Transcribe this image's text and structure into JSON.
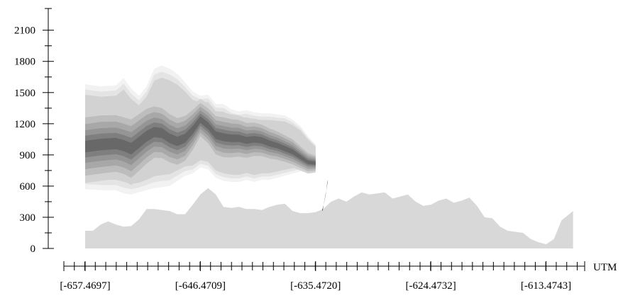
{
  "chart_data": {
    "type": "area",
    "xlabel": "UTM",
    "ylabel": "",
    "title": "",
    "ylim": [
      0,
      2200
    ],
    "xlim": [
      -659.5,
      -610.6
    ],
    "yticks": [
      0,
      300,
      600,
      900,
      1200,
      1500,
      1800,
      2100
    ],
    "xtick_labels": [
      "[-657.4697]",
      "[-646.4709]",
      "[-635.4720]",
      "[-624.4732]",
      "[-613.4743]"
    ],
    "xticks": [
      -657.4697,
      -646.4709,
      -635.472,
      -624.4732,
      -613.4743
    ],
    "x_minor_step": 1.0,
    "colors": {
      "terrain": "#d8d8d8",
      "dark_mark": "#454545",
      "bands": [
        "#f2f2f2",
        "#e4e4e4",
        "#d2d2d2",
        "#bcbcbc",
        "#a7a7a7",
        "#939393",
        "#7d7d7d",
        "#676767"
      ]
    },
    "series": [
      {
        "type": "area-baseline",
        "role": "terrain",
        "x": [
          -657.47,
          -656.73,
          -656.0,
          -655.27,
          -654.53,
          -653.8,
          -653.07,
          -652.33,
          -651.6,
          -650.87,
          -650.13,
          -649.4,
          -648.67,
          -647.93,
          -647.2,
          -646.47,
          -645.73,
          -645.0,
          -644.27,
          -643.53,
          -642.8,
          -642.07,
          -641.33,
          -640.6,
          -639.87,
          -639.13,
          -638.4,
          -637.67,
          -636.93,
          -636.2,
          -635.47,
          -634.73,
          -634.0,
          -633.27,
          -632.53,
          -631.8,
          -631.07,
          -630.33,
          -629.6,
          -628.87,
          -628.13,
          -627.4,
          -626.67,
          -625.93,
          -625.2,
          -624.47,
          -623.73,
          -623.0,
          -622.27,
          -621.53,
          -620.8,
          -620.07,
          -619.33,
          -618.6,
          -617.87,
          -617.13,
          -616.4,
          -615.67,
          -614.93,
          -614.2,
          -613.47,
          -612.73,
          -612.0,
          -611.27,
          -610.9
        ],
        "y": [
          170,
          170,
          230,
          260,
          230,
          210,
          215,
          280,
          380,
          380,
          370,
          360,
          330,
          330,
          420,
          520,
          580,
          520,
          400,
          390,
          400,
          380,
          380,
          370,
          400,
          420,
          430,
          360,
          340,
          340,
          350,
          380,
          450,
          480,
          450,
          500,
          540,
          520,
          530,
          540,
          480,
          500,
          520,
          450,
          410,
          420,
          460,
          480,
          440,
          460,
          490,
          410,
          300,
          290,
          210,
          170,
          160,
          150,
          90,
          60,
          40,
          90,
          270,
          330,
          360
        ]
      },
      {
        "type": "band",
        "role": "light halo",
        "x": [
          -657.47,
          -656.0,
          -654.53,
          -653.8,
          -653.07,
          -652.33,
          -651.6,
          -650.87,
          -650.13,
          -649.4,
          -648.67,
          -647.93,
          -647.2,
          -646.47,
          -645.73,
          -645.0,
          -644.27,
          -643.53,
          -642.8,
          -642.07,
          -641.33,
          -640.6,
          -639.87,
          -639.13,
          -638.4,
          -637.67,
          -636.93,
          -636.2,
          -635.47
        ],
        "low": [
          570,
          560,
          560,
          530,
          520,
          540,
          560,
          580,
          590,
          600,
          650,
          700,
          720,
          780,
          760,
          680,
          650,
          640,
          640,
          660,
          640,
          660,
          660,
          680,
          700,
          720,
          740,
          760,
          780
        ],
        "high": [
          1580,
          1560,
          1570,
          1640,
          1540,
          1470,
          1560,
          1730,
          1760,
          1730,
          1680,
          1600,
          1510,
          1470,
          1480,
          1390,
          1390,
          1340,
          1320,
          1330,
          1310,
          1300,
          1300,
          1290,
          1280,
          1240,
          1180,
          1080,
          1000
        ]
      },
      {
        "type": "band",
        "role": "core intensity",
        "x": [
          -657.47,
          -656.0,
          -654.53,
          -653.8,
          -653.07,
          -652.33,
          -651.6,
          -650.87,
          -650.13,
          -649.4,
          -648.67,
          -647.93,
          -647.2,
          -646.47,
          -645.73,
          -645.0,
          -644.27,
          -643.53,
          -642.8,
          -642.07,
          -641.33,
          -640.6,
          -639.87,
          -639.13,
          -638.4,
          -637.67,
          -636.93,
          -636.2,
          -635.47
        ],
        "center": [
          980,
          1000,
          1010,
          990,
          960,
          1020,
          1080,
          1120,
          1110,
          1060,
          1030,
          1060,
          1140,
          1240,
          1180,
          1090,
          1070,
          1060,
          1060,
          1040,
          1050,
          1040,
          1010,
          990,
          960,
          930,
          880,
          830,
          820
        ],
        "halfwidth": [
          350,
          350,
          340,
          340,
          350,
          340,
          330,
          310,
          300,
          290,
          280,
          270,
          240,
          200,
          210,
          230,
          240,
          230,
          220,
          210,
          200,
          190,
          180,
          170,
          160,
          150,
          130,
          110,
          90
        ]
      },
      {
        "type": "polygon",
        "role": "dark mark",
        "x": [
          -634.8,
          -634.65,
          -634.45,
          -634.35,
          -634.3,
          -634.35,
          -634.5,
          -634.7,
          -634.85
        ],
        "y": [
          360,
          450,
          560,
          620,
          660,
          640,
          520,
          420,
          370
        ]
      }
    ]
  }
}
